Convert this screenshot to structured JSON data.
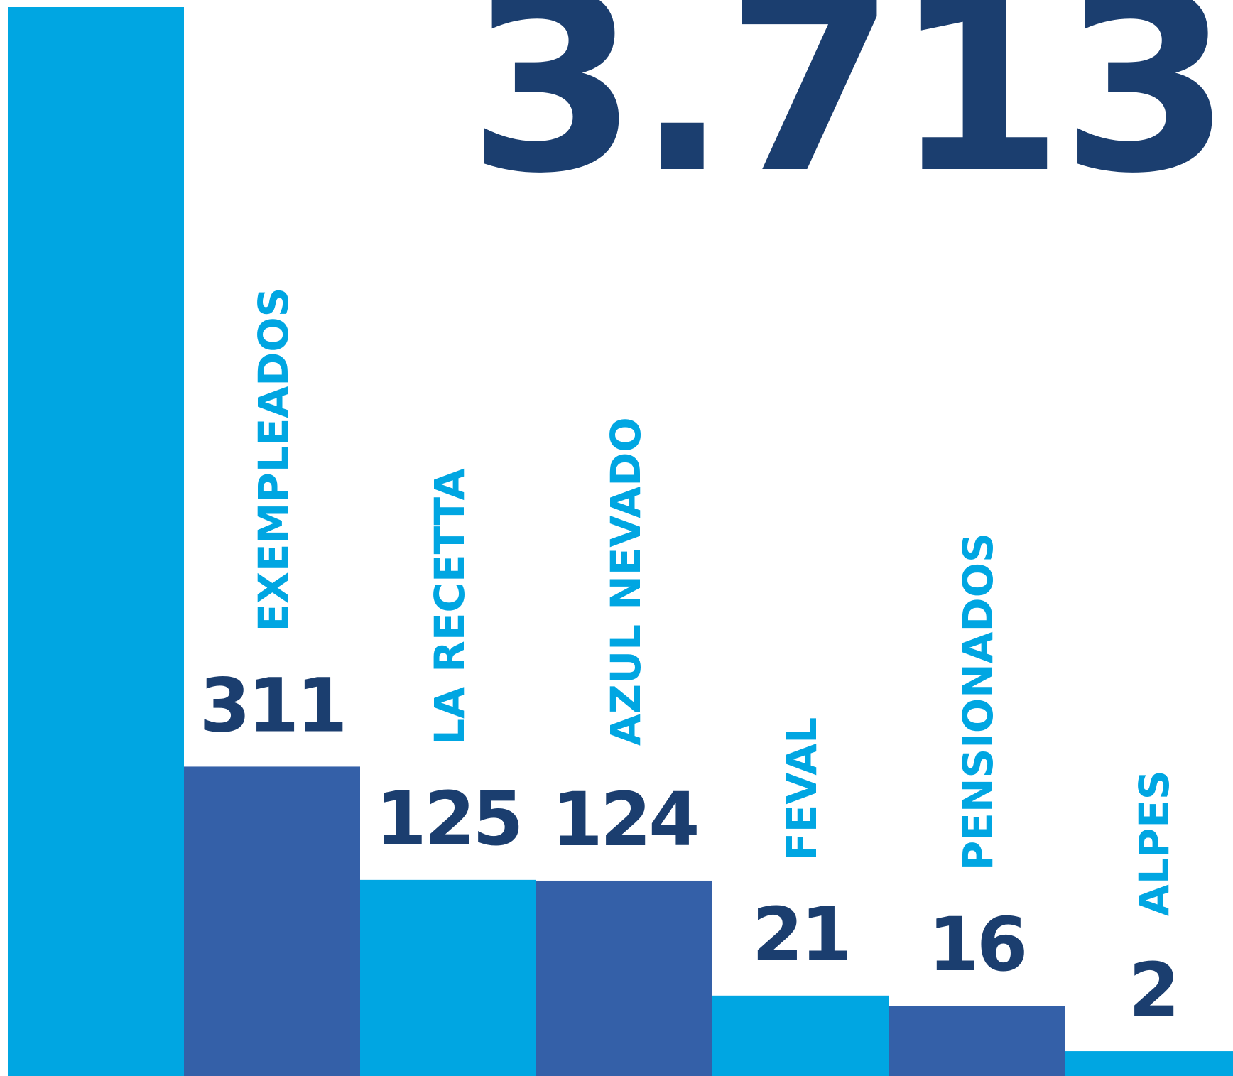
{
  "chart_data": {
    "type": "bar",
    "categories": [
      null,
      "EXEMPLEADOS",
      "LA RECETTA",
      "AZUL NEVADO",
      "FEVAL",
      "PENSIONADOS",
      "ALPES"
    ],
    "values": [
      3713,
      311,
      125,
      124,
      21,
      16,
      2
    ],
    "value_labels": [
      "3.713",
      "311",
      "125",
      "124",
      "21",
      "16",
      "2"
    ],
    "colors": [
      "#00a6e2",
      "#3460a8",
      "#00a6e2",
      "#3460a8",
      "#00a6e2",
      "#3460a8",
      "#00a6e2"
    ],
    "scale": "sqrt"
  }
}
